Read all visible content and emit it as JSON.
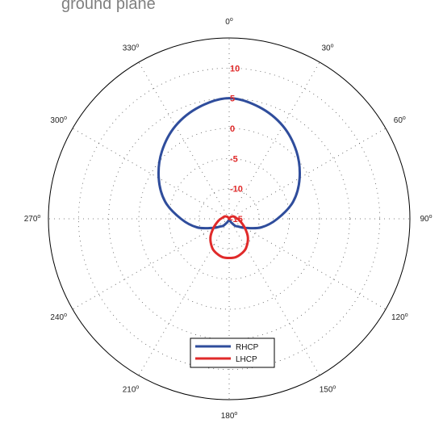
{
  "title_partial": "ground plane",
  "chart_data": {
    "type": "line",
    "subtype": "polar",
    "r_ticks": [
      {
        "value": -15,
        "label": "-15"
      },
      {
        "value": -10,
        "label": "-10"
      },
      {
        "value": -5,
        "label": "-5"
      },
      {
        "value": 0,
        "label": "0"
      },
      {
        "value": 5,
        "label": "5"
      },
      {
        "value": 10,
        "label": "10"
      }
    ],
    "rlim": [
      -15,
      15
    ],
    "angle_ticks": [
      {
        "deg": 0,
        "label": "0"
      },
      {
        "deg": 30,
        "label": "30"
      },
      {
        "deg": 60,
        "label": "60"
      },
      {
        "deg": 90,
        "label": "90"
      },
      {
        "deg": 120,
        "label": "120"
      },
      {
        "deg": 150,
        "label": "150"
      },
      {
        "deg": 180,
        "label": "180"
      },
      {
        "deg": 210,
        "label": "210"
      },
      {
        "deg": 240,
        "label": "240"
      },
      {
        "deg": 270,
        "label": "270"
      },
      {
        "deg": 300,
        "label": "300"
      },
      {
        "deg": 330,
        "label": "330"
      }
    ],
    "angle_unit_mark": "o",
    "grid": true,
    "zero_direction": "top",
    "direction": "clockwise",
    "legend_position": "bottom-center",
    "series": [
      {
        "name": "RHCP",
        "color": "#2f4d9c",
        "theta_deg": [
          0,
          15,
          30,
          45,
          60,
          75,
          90,
          105,
          120,
          130,
          140,
          150,
          160,
          170,
          180,
          190,
          200,
          210,
          220,
          230,
          240,
          255,
          270,
          285,
          300,
          315,
          330,
          345
        ],
        "r_db": [
          5.0,
          4.2,
          2.8,
          0.8,
          -1.5,
          -4.0,
          -7.0,
          -9.5,
          -12.0,
          -13.0,
          -13.5,
          -14.3,
          -14.7,
          -14.9,
          -15.0,
          -14.9,
          -14.7,
          -14.3,
          -13.5,
          -13.0,
          -12.0,
          -9.5,
          -7.0,
          -4.0,
          -1.5,
          0.8,
          2.8,
          4.2
        ]
      },
      {
        "name": "LHCP",
        "color": "#e02a2a",
        "theta_deg": [
          0,
          20,
          40,
          60,
          80,
          100,
          120,
          135,
          150,
          160,
          170,
          180,
          190,
          200,
          210,
          225,
          240,
          260,
          280,
          300,
          320,
          340
        ],
        "r_db": [
          -15.0,
          -15.0,
          -14.6,
          -14.2,
          -13.9,
          -13.2,
          -12.0,
          -10.6,
          -9.4,
          -8.9,
          -8.55,
          -8.5,
          -8.55,
          -8.9,
          -9.4,
          -10.6,
          -12.0,
          -13.2,
          -13.9,
          -14.2,
          -14.6,
          -15.0
        ]
      }
    ]
  }
}
